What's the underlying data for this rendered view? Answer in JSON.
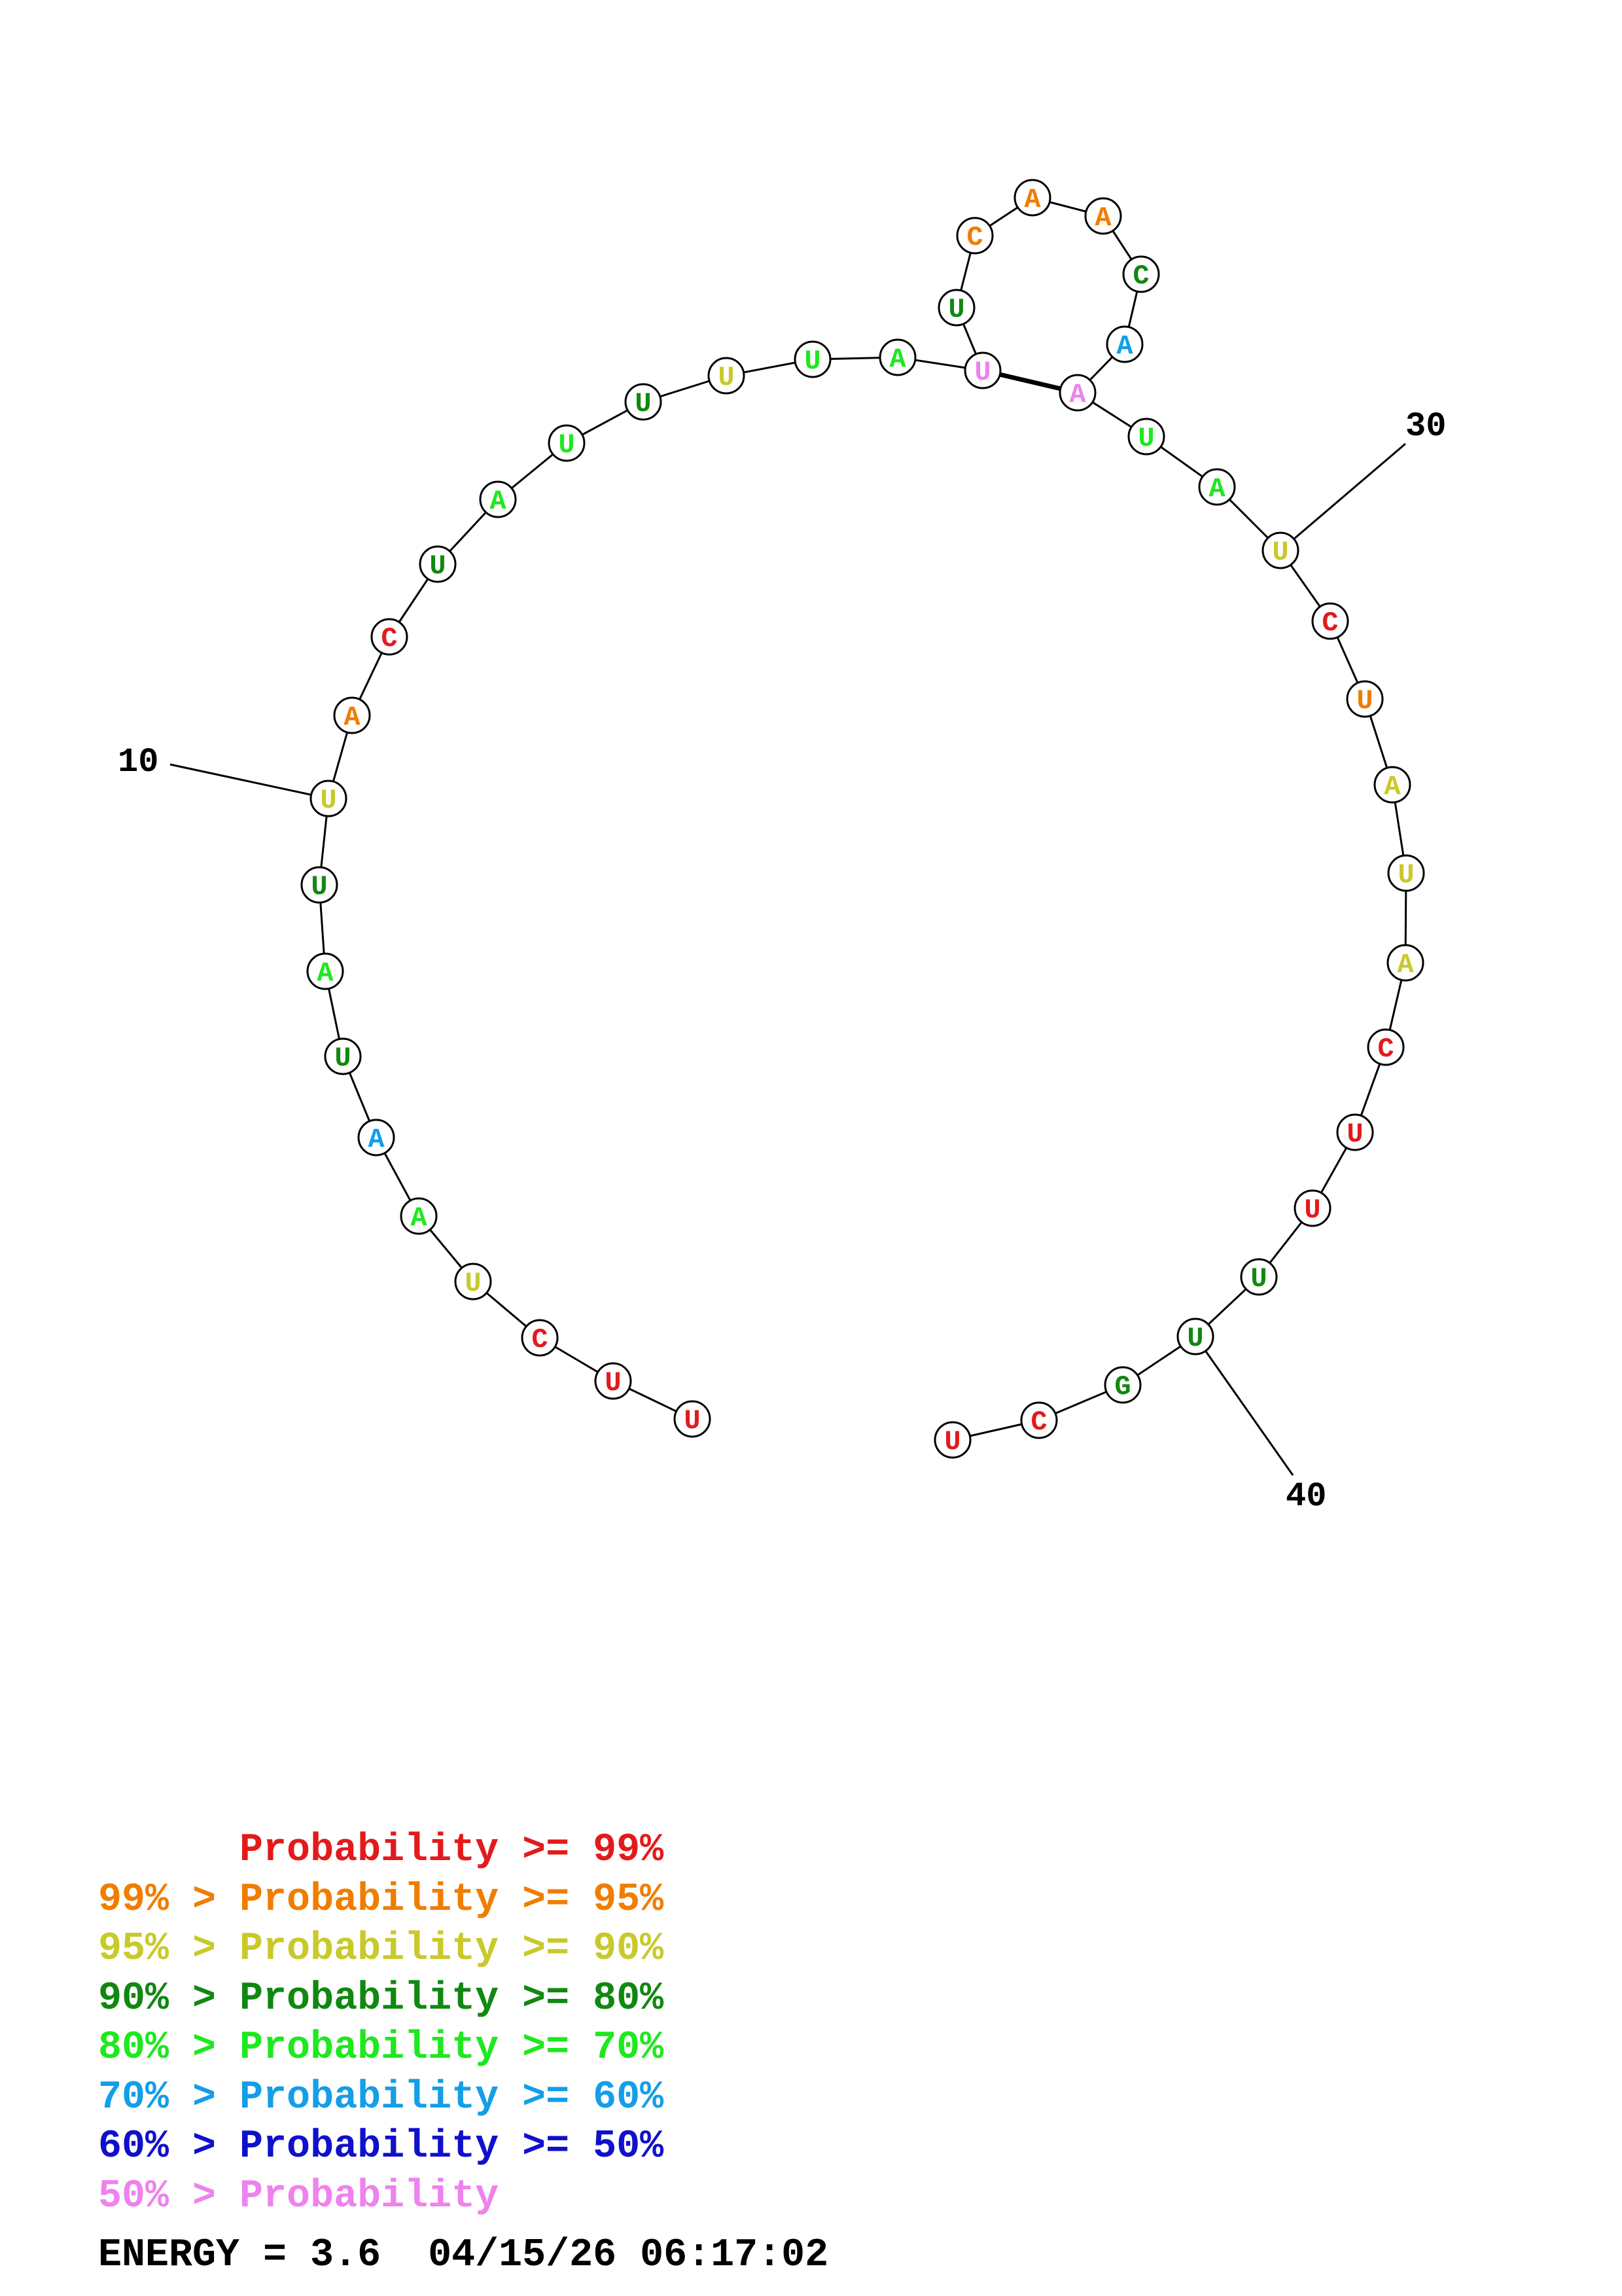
{
  "colors": {
    "p99": "#e31a1c",
    "p95": "#f07d00",
    "p90": "#c9c92a",
    "p80": "#118811",
    "p70": "#1ee81e",
    "p60": "#149ee8",
    "p50": "#1010cc",
    "plt50": "#ee82ee"
  },
  "nucleotides": [
    {
      "base": "U",
      "level": "p99"
    },
    {
      "base": "U",
      "level": "p99"
    },
    {
      "base": "C",
      "level": "p99"
    },
    {
      "base": "U",
      "level": "p90"
    },
    {
      "base": "A",
      "level": "p70"
    },
    {
      "base": "A",
      "level": "p60"
    },
    {
      "base": "U",
      "level": "p80"
    },
    {
      "base": "A",
      "level": "p70"
    },
    {
      "base": "U",
      "level": "p80"
    },
    {
      "base": "U",
      "level": "p90"
    },
    {
      "base": "A",
      "level": "p95"
    },
    {
      "base": "C",
      "level": "p99"
    },
    {
      "base": "U",
      "level": "p80"
    },
    {
      "base": "A",
      "level": "p70"
    },
    {
      "base": "U",
      "level": "p70"
    },
    {
      "base": "U",
      "level": "p80"
    },
    {
      "base": "U",
      "level": "p90"
    },
    {
      "base": "U",
      "level": "p70"
    },
    {
      "base": "A",
      "level": "p70"
    },
    {
      "base": "U",
      "level": "plt50"
    },
    {
      "base": "U",
      "level": "p80"
    },
    {
      "base": "C",
      "level": "p95"
    },
    {
      "base": "A",
      "level": "p95"
    },
    {
      "base": "A",
      "level": "p95"
    },
    {
      "base": "C",
      "level": "p80"
    },
    {
      "base": "A",
      "level": "p60"
    },
    {
      "base": "A",
      "level": "plt50"
    },
    {
      "base": "U",
      "level": "p70"
    },
    {
      "base": "A",
      "level": "p70"
    },
    {
      "base": "U",
      "level": "p90"
    },
    {
      "base": "C",
      "level": "p99"
    },
    {
      "base": "U",
      "level": "p95"
    },
    {
      "base": "A",
      "level": "p90"
    },
    {
      "base": "U",
      "level": "p90"
    },
    {
      "base": "A",
      "level": "p90"
    },
    {
      "base": "C",
      "level": "p99"
    },
    {
      "base": "U",
      "level": "p99"
    },
    {
      "base": "U",
      "level": "p99"
    },
    {
      "base": "U",
      "level": "p80"
    },
    {
      "base": "U",
      "level": "p80"
    },
    {
      "base": "G",
      "level": "p80"
    },
    {
      "base": "C",
      "level": "p99"
    },
    {
      "base": "U",
      "level": "p99"
    }
  ],
  "pairs": [
    [
      20,
      27
    ]
  ],
  "position_labels": [
    {
      "index": 10,
      "text": "10"
    },
    {
      "index": 30,
      "text": "30"
    },
    {
      "index": 40,
      "text": "40"
    }
  ],
  "legend": [
    {
      "prefix": "    ",
      "level": "p99",
      "text": "Probability >= 99%"
    },
    {
      "prefix": "99% > ",
      "level": "p95",
      "text": "Probability >= 95%"
    },
    {
      "prefix": "95% > ",
      "level": "p90",
      "text": "Probability >= 90%"
    },
    {
      "prefix": "90% > ",
      "level": "p80",
      "text": "Probability >= 80%"
    },
    {
      "prefix": "80% > ",
      "level": "p70",
      "text": "Probability >= 70%"
    },
    {
      "prefix": "70% > ",
      "level": "p60",
      "text": "Probability >= 60%"
    },
    {
      "prefix": "60% > ",
      "level": "p50",
      "text": "Probability >= 50%"
    },
    {
      "prefix": "50% > ",
      "level": "plt50",
      "text": "Probability"
    }
  ],
  "energy_text": "ENERGY = 3.6  04/15/26 06:17:02"
}
